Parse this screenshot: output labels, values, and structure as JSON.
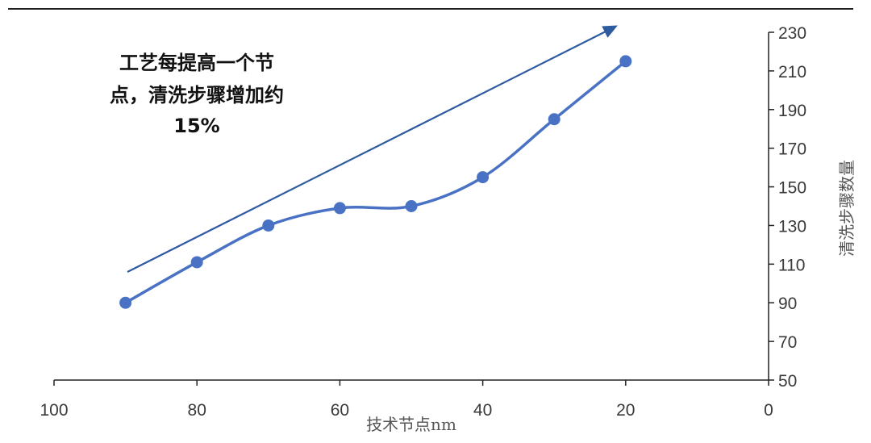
{
  "chart_data": {
    "type": "line",
    "x": [
      90,
      80,
      70,
      60,
      50,
      40,
      30,
      20
    ],
    "series": [
      {
        "values": [
          90,
          111,
          130,
          139,
          140,
          155,
          185,
          215
        ]
      }
    ],
    "xlabel": "技术节点nm",
    "ylabel": "清洗步骤数量",
    "xlim": [
      100,
      0
    ],
    "ylim": [
      50,
      230
    ],
    "x_ticks": [
      "100",
      "80",
      "60",
      "40",
      "20",
      "0"
    ],
    "y_ticks": [
      "50",
      "70",
      "90",
      "110",
      "130",
      "150",
      "170",
      "190",
      "210",
      "230"
    ],
    "y_axis_side": "right",
    "annotation": [
      "工艺每提高一个节",
      "点，清洗步骤增加约",
      "15%"
    ],
    "trend_arrow": true,
    "grid": false,
    "colors": {
      "series": "#4a72c4",
      "arrow": "#2e5aa0",
      "axis": "#222222",
      "top_rule": "#222222"
    }
  }
}
